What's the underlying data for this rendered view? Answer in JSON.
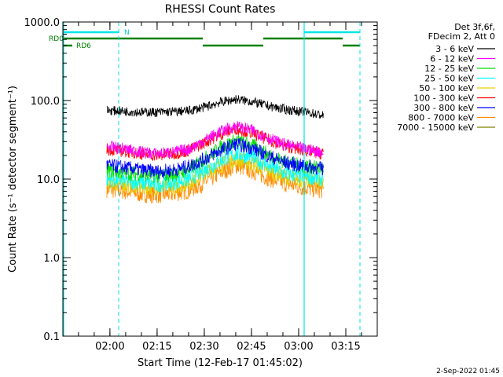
{
  "chart_data": {
    "type": "line",
    "title": "RHESSI Count Rates",
    "xlabel": "Start Time (12-Feb-17 01:45:02)",
    "ylabel": "Count Rate (s⁻¹ detector segment⁻¹)",
    "y_scale": "log",
    "ylim": [
      0.1,
      1000
    ],
    "xlim": [
      "01:45:02",
      "03:25:00"
    ],
    "x_ticks": [
      "02:00",
      "02:15",
      "02:30",
      "02:45",
      "03:00",
      "03:15"
    ],
    "y_ticks": [
      "0.1",
      "1.0",
      "10.0",
      "100.0",
      "1000.0"
    ],
    "grid": false,
    "legend_position": "top-right",
    "legend_header": [
      "Det 3f,6f,",
      "FDecim 2, Att 0"
    ],
    "annotations": [
      "RD0",
      "RD6",
      "N"
    ],
    "footer": "2-Sep-2022 01:45",
    "series": [
      {
        "name": "3 - 6 keV",
        "color": "#000000",
        "x": [
          "01:59",
          "02:05",
          "02:10",
          "02:15",
          "02:20",
          "02:25",
          "02:30",
          "02:35",
          "02:40",
          "02:45",
          "02:50",
          "02:55",
          "03:00",
          "03:05",
          "03:08"
        ],
        "values": [
          75,
          73,
          71,
          71,
          72,
          74,
          82,
          95,
          104,
          97,
          86,
          78,
          73,
          68,
          64
        ]
      },
      {
        "name": "6 - 12 keV",
        "color": "#ff00ff",
        "x": [
          "01:59",
          "02:05",
          "02:10",
          "02:15",
          "02:20",
          "02:25",
          "02:30",
          "02:35",
          "02:40",
          "02:45",
          "02:50",
          "02:55",
          "03:00",
          "03:05",
          "03:08"
        ],
        "values": [
          26,
          24,
          22,
          21,
          22,
          24,
          31,
          40,
          47,
          42,
          34,
          28,
          25,
          23,
          22
        ]
      },
      {
        "name": "12 - 25 keV",
        "color": "#00e000",
        "x": [
          "01:59",
          "02:05",
          "02:10",
          "02:15",
          "02:20",
          "02:25",
          "02:30",
          "02:35",
          "02:40",
          "02:45",
          "02:50",
          "02:55",
          "03:00",
          "03:05",
          "03:08"
        ],
        "values": [
          13,
          12,
          11.5,
          11,
          11.5,
          13,
          18,
          25,
          31,
          27,
          21,
          17,
          15,
          14,
          14
        ]
      },
      {
        "name": "25 - 50 keV",
        "color": "#00ffff",
        "x": [
          "01:59",
          "02:05",
          "02:10",
          "02:15",
          "02:20",
          "02:25",
          "02:30",
          "02:35",
          "02:40",
          "02:45",
          "02:50",
          "02:55",
          "03:00",
          "03:05",
          "03:08"
        ],
        "values": [
          10,
          9.5,
          9,
          8.5,
          9,
          10,
          13,
          17,
          21,
          19,
          15,
          12,
          11,
          10.5,
          10
        ]
      },
      {
        "name": "50 - 100 keV",
        "color": "#e8d000",
        "x": [
          "01:59",
          "02:05",
          "02:10",
          "02:15",
          "02:20",
          "02:25",
          "02:30",
          "02:35",
          "02:40",
          "02:45",
          "02:50",
          "02:55",
          "03:00",
          "03:05",
          "03:08"
        ],
        "values": [
          9,
          8.5,
          8,
          7.8,
          8,
          9,
          12,
          15,
          18,
          16,
          13,
          11,
          10,
          9.5,
          9
        ]
      },
      {
        "name": "100 - 300 keV",
        "color": "#ff0000",
        "x": [
          "01:59",
          "02:05",
          "02:10",
          "02:15",
          "02:20",
          "02:25",
          "02:30",
          "02:35",
          "02:40",
          "02:45",
          "02:50",
          "02:55",
          "03:00",
          "03:05",
          "03:08"
        ],
        "values": [
          24,
          22.5,
          21,
          20,
          21,
          23,
          29,
          37,
          44,
          39,
          32,
          27,
          24,
          22,
          21
        ]
      },
      {
        "name": "300 - 800 keV",
        "color": "#0000ff",
        "x": [
          "01:59",
          "02:05",
          "02:10",
          "02:15",
          "02:20",
          "02:25",
          "02:30",
          "02:35",
          "02:40",
          "02:45",
          "02:50",
          "02:55",
          "03:00",
          "03:05",
          "03:08"
        ],
        "values": [
          15,
          14,
          13,
          12.5,
          13,
          14.5,
          18,
          23,
          28,
          25,
          20,
          16.5,
          15,
          14,
          13.5
        ]
      },
      {
        "name": "800 - 7000 keV",
        "color": "#ff8c00",
        "x": [
          "01:59",
          "02:05",
          "02:10",
          "02:15",
          "02:20",
          "02:25",
          "02:30",
          "02:35",
          "02:40",
          "02:45",
          "02:50",
          "02:55",
          "03:00",
          "03:05",
          "03:08"
        ],
        "values": [
          7.5,
          7,
          6.5,
          6.3,
          6.5,
          7.2,
          9,
          12,
          15,
          13,
          10.5,
          9,
          8,
          7.5,
          7.2
        ]
      },
      {
        "name": "7000 - 15000 keV",
        "color": "#808000",
        "x": [],
        "values": []
      }
    ]
  }
}
